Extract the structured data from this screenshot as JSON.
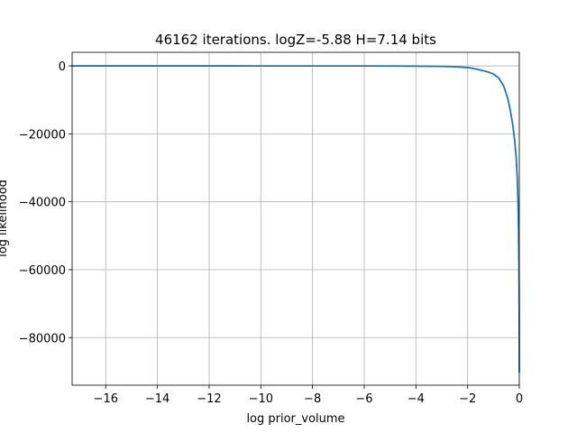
{
  "chart_data": {
    "type": "line",
    "title": "46162 iterations. logZ=-5.88 H=7.14 bits",
    "xlabel": "log prior_volume",
    "ylabel": "log likelihood",
    "xlim": [
      -17.3,
      0.0
    ],
    "ylim": [
      -94000,
      4000
    ],
    "grid": true,
    "xticks": [
      -16,
      -14,
      -12,
      -10,
      -8,
      -6,
      -4,
      -2,
      0
    ],
    "xtick_labels": [
      "−16",
      "−14",
      "−12",
      "−10",
      "−8",
      "−6",
      "−4",
      "−2",
      "0"
    ],
    "yticks": [
      0,
      -20000,
      -40000,
      -60000,
      -80000
    ],
    "ytick_labels": [
      "0",
      "−20000",
      "−40000",
      "−60000",
      "−80000"
    ],
    "series": [
      {
        "color": "#1f77b4",
        "x": [
          -17.3,
          -15,
          -12,
          -10,
          -8,
          -6,
          -4,
          -3,
          -2.5,
          -2,
          -1.8,
          -1.5,
          -1.2,
          -1.0,
          -0.8,
          -0.6,
          -0.45,
          -0.35,
          -0.25,
          -0.18,
          -0.12,
          -0.08,
          -0.05,
          -0.03,
          -0.015,
          -0.005,
          0.0
        ],
        "y": [
          -3,
          -4,
          -5,
          -8,
          -12,
          -20,
          -60,
          -150,
          -250,
          -500,
          -700,
          -1200,
          -1800,
          -2400,
          -3500,
          -6000,
          -9500,
          -13000,
          -17500,
          -22000,
          -27000,
          -33000,
          -40000,
          -48000,
          -58000,
          -72000,
          -90000
        ]
      }
    ]
  }
}
